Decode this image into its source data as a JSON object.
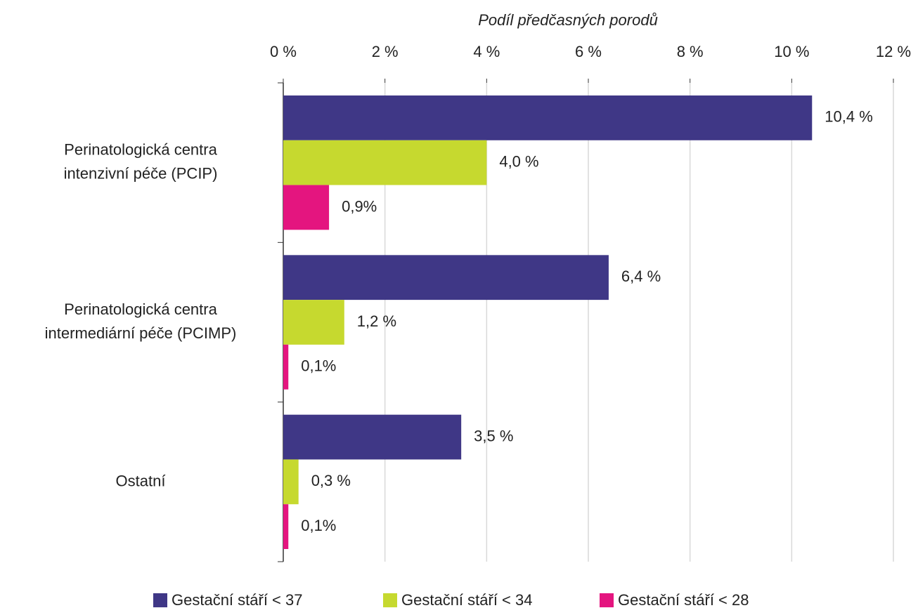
{
  "chart_data": {
    "type": "bar",
    "orientation": "horizontal",
    "x_label": "Podíl předčasných porodů",
    "categories": [
      "Perinatologická centra\nintenzivní péče (PCIP)",
      "Perinatologická centra\nintermediární péče (PCIMP)",
      "Ostatní"
    ],
    "series": [
      {
        "name": "Gestační stáří < 37",
        "color": "#3f3786",
        "label_color": "#4b43a0",
        "values": [
          10.4,
          6.4,
          3.5
        ],
        "value_labels": [
          "10,4 %",
          "6,4 %",
          "3,5 %"
        ]
      },
      {
        "name": "Gestační stáří < 34",
        "color": "#c6d92f",
        "label_color": "#7b8a2e",
        "values": [
          4.0,
          1.2,
          0.3
        ],
        "value_labels": [
          "4,0 %",
          "1,2 %",
          "0,3 %"
        ]
      },
      {
        "name": "Gestační stáří < 28",
        "color": "#e4157f",
        "label_color": "#8c1d4e",
        "values": [
          0.9,
          0.1,
          0.1
        ],
        "value_labels": [
          "0,9%",
          "0,1%",
          "0,1%"
        ]
      }
    ],
    "xlim": [
      0,
      12
    ],
    "xticks": [
      {
        "value": 0,
        "label": "0 %"
      },
      {
        "value": 2,
        "label": "2 %"
      },
      {
        "value": 4,
        "label": "4 %"
      },
      {
        "value": 6,
        "label": "6 %"
      },
      {
        "value": 8,
        "label": "8 %"
      },
      {
        "value": 10,
        "label": "10 %"
      },
      {
        "value": 12,
        "label": "12 %"
      }
    ],
    "grid": true,
    "legend": "bottom"
  }
}
